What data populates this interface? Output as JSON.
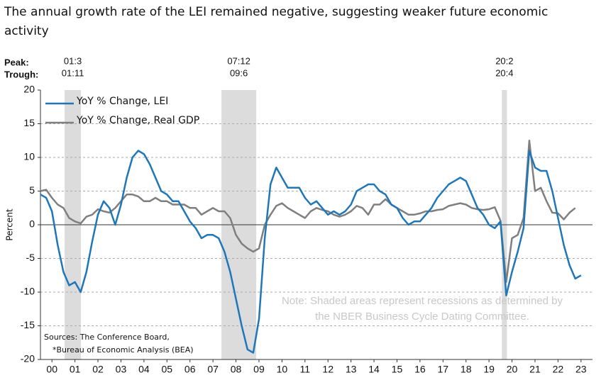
{
  "chart_data": {
    "type": "line",
    "title": "The annual growth rate of the LEI remained negative, suggesting weaker future economic activity",
    "ylabel": "Percent",
    "peak_label": "Peak:",
    "trough_label": "Trough:",
    "note": [
      "Note: Shaded areas represent recessions as determined by",
      "the NBER Business Cycle Dating Committee."
    ],
    "sources": [
      "Sources: The Conference Board,",
      "*Bureau of Economic Analysis (BEA)"
    ],
    "xlim": [
      2000,
      2024
    ],
    "ylim": [
      -20,
      20
    ],
    "yticks": [
      -20,
      -15,
      -10,
      -5,
      0,
      5,
      10,
      15,
      20
    ],
    "xticks": [
      {
        "value": 2000.5,
        "label": "00"
      },
      {
        "value": 2001.5,
        "label": "01"
      },
      {
        "value": 2002.5,
        "label": "02"
      },
      {
        "value": 2003.5,
        "label": "03"
      },
      {
        "value": 2004.5,
        "label": "04"
      },
      {
        "value": 2005.5,
        "label": "05"
      },
      {
        "value": 2006.5,
        "label": "06"
      },
      {
        "value": 2007.5,
        "label": "07"
      },
      {
        "value": 2008.5,
        "label": "08"
      },
      {
        "value": 2009.5,
        "label": "09"
      },
      {
        "value": 2010.5,
        "label": "10"
      },
      {
        "value": 2011.5,
        "label": "11"
      },
      {
        "value": 2012.5,
        "label": "12"
      },
      {
        "value": 2013.5,
        "label": "13"
      },
      {
        "value": 2014.5,
        "label": "14"
      },
      {
        "value": 2015.5,
        "label": "15"
      },
      {
        "value": 2016.5,
        "label": "16"
      },
      {
        "value": 2017.5,
        "label": "17"
      },
      {
        "value": 2018.5,
        "label": "18"
      },
      {
        "value": 2019.5,
        "label": "19"
      },
      {
        "value": 2020.5,
        "label": "20"
      },
      {
        "value": 2021.5,
        "label": "21"
      },
      {
        "value": 2022.5,
        "label": "22"
      },
      {
        "value": 2023.5,
        "label": "23"
      }
    ],
    "grid": true,
    "recessions": [
      {
        "start": 2001.05,
        "end": 2001.76,
        "peak": "01:3",
        "trough": "01:11"
      },
      {
        "start": 2007.87,
        "end": 2009.38,
        "peak": "07:12",
        "trough": "09:6"
      },
      {
        "start": 2020.06,
        "end": 2020.28,
        "peak": "20:2",
        "trough": "20:4"
      }
    ],
    "series": [
      {
        "name": "YoY % Change, LEI",
        "color": "#1f77b8",
        "x": [
          2000,
          2000.25,
          2000.5,
          2000.75,
          2001,
          2001.25,
          2001.5,
          2001.75,
          2002,
          2002.25,
          2002.5,
          2002.75,
          2003,
          2003.25,
          2003.5,
          2003.75,
          2004,
          2004.25,
          2004.5,
          2004.75,
          2005,
          2005.25,
          2005.5,
          2005.75,
          2006,
          2006.25,
          2006.5,
          2006.75,
          2007,
          2007.25,
          2007.5,
          2007.75,
          2008,
          2008.25,
          2008.5,
          2008.75,
          2009,
          2009.25,
          2009.5,
          2009.75,
          2010,
          2010.25,
          2010.5,
          2010.75,
          2011,
          2011.25,
          2011.5,
          2011.75,
          2012,
          2012.25,
          2012.5,
          2012.75,
          2013,
          2013.25,
          2013.5,
          2013.75,
          2014,
          2014.25,
          2014.5,
          2014.75,
          2015,
          2015.25,
          2015.5,
          2015.75,
          2016,
          2016.25,
          2016.5,
          2016.75,
          2017,
          2017.25,
          2017.5,
          2017.75,
          2018,
          2018.25,
          2018.5,
          2018.75,
          2019,
          2019.25,
          2019.5,
          2019.75,
          2020,
          2020.25,
          2020.5,
          2020.75,
          2021,
          2021.25,
          2021.5,
          2021.75,
          2022,
          2022.25,
          2022.5,
          2022.75,
          2023,
          2023.25,
          2023.5
        ],
        "values": [
          4.5,
          4,
          2,
          -3,
          -7,
          -9,
          -8.5,
          -10,
          -7,
          -2.5,
          1.5,
          3.5,
          2.5,
          0,
          3,
          7,
          10,
          11,
          10.5,
          9,
          7,
          5,
          4.5,
          3.5,
          3.5,
          2,
          0.5,
          -0.5,
          -2,
          -1.5,
          -1.5,
          -2,
          -4,
          -7,
          -11,
          -15,
          -18.5,
          -19,
          -14,
          -2,
          6,
          8.5,
          7,
          5.5,
          5.5,
          5.5,
          4,
          3,
          3.5,
          2.5,
          1.5,
          2,
          1.5,
          2,
          3,
          5,
          5.5,
          6,
          6,
          5,
          4.5,
          3,
          2.5,
          1,
          0,
          0.5,
          0.5,
          1.5,
          2.5,
          4,
          5,
          6,
          6.5,
          7,
          6.5,
          4.5,
          2.5,
          1.5,
          0,
          -0.5,
          0.5,
          -10.5,
          -7,
          -4,
          -0.5,
          11,
          8.5,
          8,
          8,
          5,
          1,
          -3,
          -6,
          -8,
          -7.5
        ]
      },
      {
        "name": "YoY % Change, Real GDP",
        "color": "#7f7f7f",
        "x": [
          2000,
          2000.25,
          2000.5,
          2000.75,
          2001,
          2001.25,
          2001.5,
          2001.75,
          2002,
          2002.25,
          2002.5,
          2002.75,
          2003,
          2003.25,
          2003.5,
          2003.75,
          2004,
          2004.25,
          2004.5,
          2004.75,
          2005,
          2005.25,
          2005.5,
          2005.75,
          2006,
          2006.25,
          2006.5,
          2006.75,
          2007,
          2007.25,
          2007.5,
          2007.75,
          2008,
          2008.25,
          2008.5,
          2008.75,
          2009,
          2009.25,
          2009.5,
          2009.75,
          2010,
          2010.25,
          2010.5,
          2010.75,
          2011,
          2011.25,
          2011.5,
          2011.75,
          2012,
          2012.25,
          2012.5,
          2012.75,
          2013,
          2013.25,
          2013.5,
          2013.75,
          2014,
          2014.25,
          2014.5,
          2014.75,
          2015,
          2015.25,
          2015.5,
          2015.75,
          2016,
          2016.25,
          2016.5,
          2016.75,
          2017,
          2017.25,
          2017.5,
          2017.75,
          2018,
          2018.25,
          2018.5,
          2018.75,
          2019,
          2019.25,
          2019.5,
          2019.75,
          2020,
          2020.25,
          2020.5,
          2020.75,
          2021,
          2021.25,
          2021.5,
          2021.75,
          2022,
          2022.25,
          2022.5,
          2022.75,
          2023,
          2023.25
        ],
        "values": [
          5,
          5.2,
          4,
          3,
          2.5,
          1,
          0.5,
          0.2,
          1.2,
          1.5,
          2.3,
          2,
          1.8,
          2.5,
          3.5,
          4.5,
          4.5,
          4.2,
          3.5,
          3.5,
          4,
          3.5,
          3.5,
          3,
          3,
          3,
          2.5,
          2.5,
          1.5,
          2,
          2.5,
          2,
          2,
          1,
          -1.5,
          -2.8,
          -3.5,
          -4,
          -3.5,
          0,
          1.5,
          2.8,
          3.2,
          2.5,
          2,
          1.5,
          1,
          2,
          2.5,
          2.2,
          2,
          1.5,
          1.2,
          1.5,
          2,
          2.8,
          2.5,
          1.5,
          3,
          3,
          3.8,
          3,
          2.5,
          2,
          1.5,
          1.5,
          1.7,
          2,
          2,
          2.2,
          2.3,
          2.8,
          3,
          3.2,
          3,
          2.5,
          2.3,
          2.2,
          2.3,
          2.6,
          0.6,
          -8.5,
          -2,
          -1.5,
          1,
          12.5,
          5,
          5.5,
          3.5,
          1.8,
          1.7,
          0.8,
          1.8,
          2.5
        ]
      }
    ]
  }
}
